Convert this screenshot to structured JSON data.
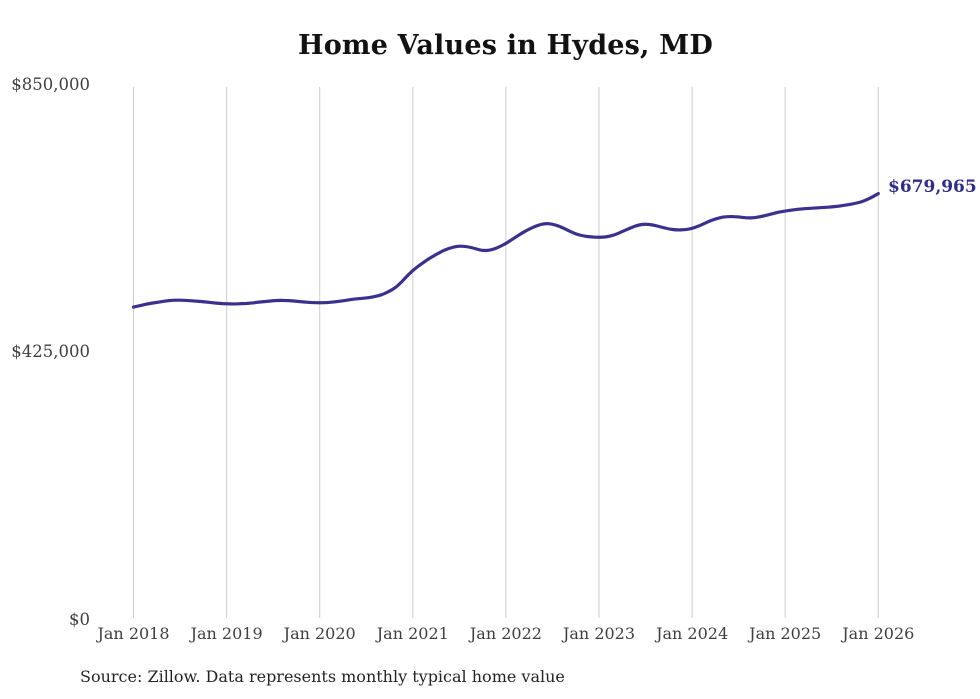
{
  "chart_data": {
    "type": "line",
    "title": "Home Values in Hydes, MD",
    "source": "Source: Zillow. Data represents monthly typical home value",
    "end_label": "$679,965",
    "latest_value": 679965,
    "frequency": "monthly",
    "x_start": "Jan 2018",
    "x_end": "Jan 2026",
    "x_tick_labels": [
      "Jan 2018",
      "Jan 2019",
      "Jan 2020",
      "Jan 2021",
      "Jan 2022",
      "Jan 2023",
      "Jan 2024",
      "Jan 2025",
      "Jan 2026"
    ],
    "y_tick_labels": [
      "$850,000",
      "$425,000",
      "$0"
    ],
    "y_tick_values": [
      850000,
      425000,
      0
    ],
    "ylim": [
      0,
      850000
    ],
    "grid": "vertical-only",
    "legend_position": "none",
    "colors": {
      "line": "#39318e",
      "end_label": "#2e2d8f",
      "gridline": "#cdcdcd",
      "tick_text": "#3f3f3f",
      "title_text": "#121212"
    },
    "series": [
      {
        "name": "Typical home value",
        "values": [
          499000,
          502000,
          504500,
          506500,
          508500,
          509800,
          510200,
          509600,
          508600,
          507600,
          506200,
          505000,
          504200,
          504000,
          504400,
          505200,
          506600,
          508000,
          509200,
          509800,
          509400,
          508400,
          507200,
          506200,
          505800,
          506200,
          507400,
          509000,
          511000,
          512600,
          513600,
          515400,
          518600,
          524000,
          532000,
          545000,
          557500,
          567000,
          575500,
          583000,
          589500,
          594000,
          596500,
          595500,
          592500,
          589000,
          589500,
          594000,
          600500,
          608500,
          616500,
          623500,
          629000,
          632400,
          631500,
          627500,
          621500,
          615500,
          612500,
          610800,
          610200,
          611000,
          614000,
          619500,
          625000,
          629800,
          631500,
          630000,
          626800,
          623500,
          622000,
          622200,
          624400,
          629000,
          634800,
          639600,
          642800,
          643600,
          642800,
          641200,
          641300,
          643600,
          646800,
          650000,
          652400,
          654000,
          655500,
          656300,
          657100,
          658000,
          658700,
          660300,
          662000,
          664300,
          667400,
          673000,
          679965
        ]
      }
    ]
  }
}
